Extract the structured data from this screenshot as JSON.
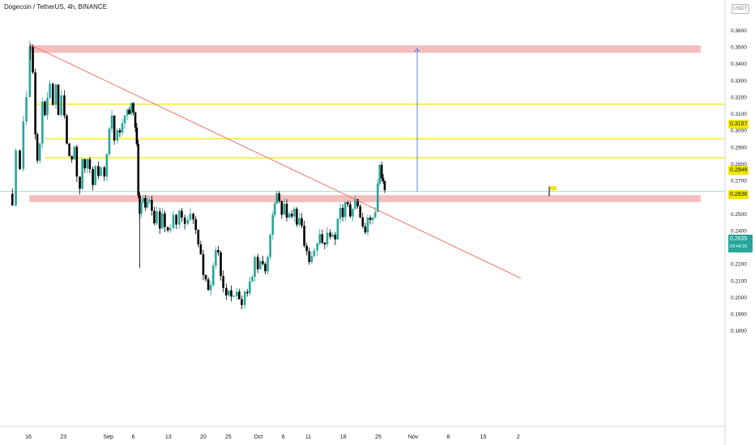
{
  "header": {
    "symbol": "Dogecoin / TetherUS",
    "interval": "4h",
    "exchange": "BINANCE"
  },
  "currency": "USDT",
  "last_price": {
    "value": "0.2635",
    "countdown": "03:49:30"
  },
  "colors": {
    "up": "#26a69a",
    "down": "#000000",
    "zone": "#f5b6b6",
    "level": "#f2e600",
    "trendline": "#e8746b",
    "target_arrow": "#5b86d4"
  },
  "chart_data": {
    "type": "candlestick",
    "title": "Dogecoin / TetherUS, 4h, BINANCE",
    "ylabel": "USDT",
    "y_ticks": [
      "0.1800",
      "0.1900",
      "0.2000",
      "0.2100",
      "0.2200",
      "0.2300",
      "0.2400",
      "0.2500",
      "0.2600",
      "0.2700",
      "0.2800",
      "0.2900",
      "0.3000",
      "0.3100",
      "0.3200",
      "0.3300",
      "0.3400",
      "0.3500",
      "0.3600"
    ],
    "ylim": [
      0.1775,
      0.37
    ],
    "x_ticks": [
      {
        "label": "16",
        "day": 0
      },
      {
        "label": "23",
        "day": 7
      },
      {
        "label": "Sep",
        "day": 16
      },
      {
        "label": "6",
        "day": 21
      },
      {
        "label": "13",
        "day": 28
      },
      {
        "label": "20",
        "day": 35
      },
      {
        "label": "25",
        "day": 40
      },
      {
        "label": "Oct",
        "day": 46
      },
      {
        "label": "6",
        "day": 51
      },
      {
        "label": "11",
        "day": 56
      },
      {
        "label": "18",
        "day": 63
      },
      {
        "label": "25",
        "day": 70
      },
      {
        "label": "Nov",
        "day": 77
      },
      {
        "label": "8",
        "day": 84
      },
      {
        "label": "15",
        "day": 91
      },
      {
        "label": "2",
        "day": 98
      }
    ],
    "close_path": [
      [
        -3.7,
        0.262
      ],
      [
        -3.2,
        0.258
      ],
      [
        -2.5,
        0.29
      ],
      [
        -1.7,
        0.275
      ],
      [
        -1.0,
        0.305
      ],
      [
        -0.4,
        0.322
      ],
      [
        0.3,
        0.35
      ],
      [
        0.9,
        0.335
      ],
      [
        1.4,
        0.3
      ],
      [
        1.8,
        0.282
      ],
      [
        2.3,
        0.295
      ],
      [
        2.8,
        0.318
      ],
      [
        3.3,
        0.308
      ],
      [
        3.8,
        0.322
      ],
      [
        4.3,
        0.33
      ],
      [
        4.9,
        0.318
      ],
      [
        5.5,
        0.325
      ],
      [
        6.0,
        0.312
      ],
      [
        6.6,
        0.318
      ],
      [
        7.2,
        0.31
      ],
      [
        7.7,
        0.295
      ],
      [
        8.2,
        0.285
      ],
      [
        8.7,
        0.28
      ],
      [
        9.2,
        0.29
      ],
      [
        9.7,
        0.272
      ],
      [
        10.3,
        0.265
      ],
      [
        10.8,
        0.282
      ],
      [
        11.3,
        0.276
      ],
      [
        11.8,
        0.285
      ],
      [
        12.3,
        0.278
      ],
      [
        12.9,
        0.268
      ],
      [
        13.4,
        0.28
      ],
      [
        14.0,
        0.275
      ],
      [
        14.5,
        0.278
      ],
      [
        15.2,
        0.272
      ],
      [
        15.7,
        0.285
      ],
      [
        16.2,
        0.302
      ],
      [
        16.7,
        0.308
      ],
      [
        17.2,
        0.295
      ],
      [
        17.8,
        0.303
      ],
      [
        18.3,
        0.3
      ],
      [
        18.8,
        0.305
      ],
      [
        19.3,
        0.31
      ],
      [
        19.8,
        0.312
      ],
      [
        20.2,
        0.311
      ],
      [
        20.6,
        0.315
      ],
      [
        21.0,
        0.308
      ],
      [
        21.4,
        0.3
      ],
      [
        21.7,
        0.29
      ],
      [
        22.0,
        0.262
      ],
      [
        22.3,
        0.248
      ],
      [
        22.6,
        0.256
      ],
      [
        23.0,
        0.258
      ],
      [
        23.4,
        0.252
      ],
      [
        23.8,
        0.258
      ],
      [
        24.2,
        0.256
      ],
      [
        24.7,
        0.25
      ],
      [
        25.2,
        0.246
      ],
      [
        25.7,
        0.25
      ],
      [
        26.3,
        0.244
      ],
      [
        26.8,
        0.248
      ],
      [
        27.3,
        0.243
      ],
      [
        27.9,
        0.238
      ],
      [
        28.4,
        0.24
      ],
      [
        29.0,
        0.247
      ],
      [
        29.6,
        0.244
      ],
      [
        30.2,
        0.252
      ],
      [
        30.7,
        0.248
      ],
      [
        31.3,
        0.243
      ],
      [
        31.9,
        0.246
      ],
      [
        32.4,
        0.25
      ],
      [
        33.0,
        0.245
      ],
      [
        33.5,
        0.24
      ],
      [
        34.0,
        0.233
      ],
      [
        34.5,
        0.225
      ],
      [
        35.0,
        0.215
      ],
      [
        35.5,
        0.212
      ],
      [
        36.0,
        0.207
      ],
      [
        36.5,
        0.21
      ],
      [
        37.0,
        0.22
      ],
      [
        37.5,
        0.228
      ],
      [
        38.0,
        0.224
      ],
      [
        38.5,
        0.213
      ],
      [
        39.0,
        0.205
      ],
      [
        39.6,
        0.202
      ],
      [
        40.1,
        0.203
      ],
      [
        40.6,
        0.198
      ],
      [
        41.1,
        0.201
      ],
      [
        41.7,
        0.203
      ],
      [
        42.2,
        0.199
      ],
      [
        42.7,
        0.198
      ],
      [
        43.3,
        0.202
      ],
      [
        43.8,
        0.205
      ],
      [
        44.3,
        0.21
      ],
      [
        44.8,
        0.215
      ],
      [
        45.3,
        0.222
      ],
      [
        45.9,
        0.218
      ],
      [
        46.4,
        0.224
      ],
      [
        46.9,
        0.22
      ],
      [
        47.4,
        0.216
      ],
      [
        47.9,
        0.225
      ],
      [
        48.4,
        0.235
      ],
      [
        48.9,
        0.248
      ],
      [
        49.3,
        0.258
      ],
      [
        49.7,
        0.262
      ],
      [
        50.2,
        0.256
      ],
      [
        50.7,
        0.252
      ],
      [
        51.2,
        0.255
      ],
      [
        51.7,
        0.248
      ],
      [
        52.2,
        0.252
      ],
      [
        52.7,
        0.249
      ],
      [
        53.2,
        0.251
      ],
      [
        53.7,
        0.246
      ],
      [
        54.2,
        0.248
      ],
      [
        54.7,
        0.24
      ],
      [
        55.2,
        0.233
      ],
      [
        55.7,
        0.228
      ],
      [
        56.2,
        0.222
      ],
      [
        56.7,
        0.224
      ],
      [
        57.2,
        0.226
      ],
      [
        57.8,
        0.232
      ],
      [
        58.3,
        0.237
      ],
      [
        58.8,
        0.23
      ],
      [
        59.3,
        0.234
      ],
      [
        59.8,
        0.238
      ],
      [
        60.4,
        0.236
      ],
      [
        60.9,
        0.24
      ],
      [
        61.4,
        0.237
      ],
      [
        61.9,
        0.248
      ],
      [
        62.4,
        0.255
      ],
      [
        62.9,
        0.25
      ],
      [
        63.4,
        0.258
      ],
      [
        63.9,
        0.254
      ],
      [
        64.4,
        0.249
      ],
      [
        64.9,
        0.251
      ],
      [
        65.4,
        0.257
      ],
      [
        65.9,
        0.256
      ],
      [
        66.4,
        0.247
      ],
      [
        66.9,
        0.244
      ],
      [
        67.4,
        0.24
      ],
      [
        67.9,
        0.249
      ],
      [
        68.4,
        0.245
      ],
      [
        68.9,
        0.25
      ],
      [
        69.4,
        0.253
      ],
      [
        69.9,
        0.27
      ],
      [
        70.3,
        0.281
      ],
      [
        70.7,
        0.272
      ],
      [
        71.0,
        0.268
      ],
      [
        71.3,
        0.264
      ]
    ],
    "annotations": {
      "supply_zone": [
        0.3465,
        0.351
      ],
      "demand_zone": [
        0.257,
        0.2612
      ],
      "levels": [
        "0.3157",
        "0.2949",
        "0.2836"
      ],
      "trendline": {
        "from": [
          0.2,
          0.3515
        ],
        "to": [
          98.5,
          0.2115
        ]
      },
      "target_arrow": {
        "day": 77.8,
        "from": 0.2632,
        "to": 0.349
      },
      "price_line": 0.2635
    }
  }
}
